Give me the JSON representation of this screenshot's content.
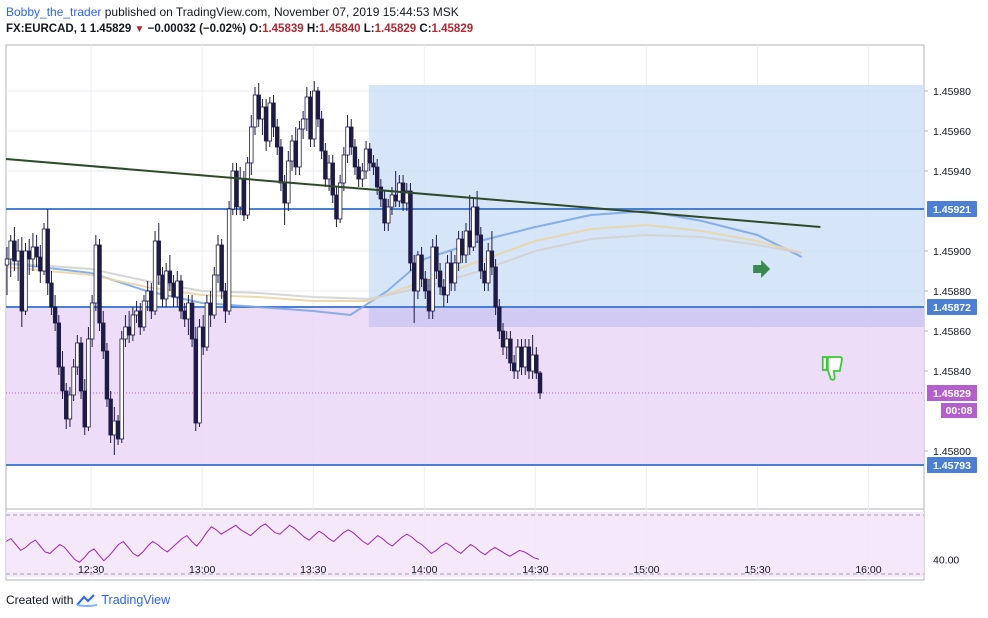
{
  "header": {
    "author": "Bobby_the_trader",
    "published_text": "published on TradingView.com, November 07, 2019 15:44:53 MSK",
    "symbol": "FX:EURCAD, 1",
    "last": "1.45829",
    "change": "−0.00032 (−0.02%)",
    "o_label": "O:",
    "o_value": "1.45839",
    "h_label": "H:",
    "h_value": "1.45840",
    "l_label": "L:",
    "l_value": "1.45829",
    "c_label": "C:",
    "c_value": "1.45829"
  },
  "footer": {
    "created_with": "Created with",
    "brand": "TradingView"
  },
  "colors": {
    "candle": "#1e1b47",
    "accent_blue": "#4a7fd4",
    "bull_zone": "#cfe0f7",
    "bear_zone": "#ead7f7",
    "purple_tag": "#b55fcf",
    "trendline": "#2f4a2a",
    "rsi": "#9c27b0",
    "signal_up": "#3a8a50",
    "signal_down": "#33cc33"
  },
  "icons": [
    "arrow-right-icon",
    "thumbs-down-icon",
    "tradingview-logo-icon"
  ],
  "chart_data": {
    "type": "candlestick",
    "instrument": "FX:EURCAD",
    "interval": "1",
    "y_ticks": [
      "1.45980",
      "1.45960",
      "1.45940",
      "1.45900",
      "1.45880",
      "1.45860",
      "1.45840",
      "1.45800"
    ],
    "x_ticks": [
      "12:30",
      "13:00",
      "13:30",
      "14:00",
      "14:30",
      "15:00",
      "15:30",
      "16:00"
    ],
    "x_range": [
      "12:07",
      "16:15"
    ],
    "ylim": [
      1.45771,
      1.46003
    ],
    "level_lines": [
      {
        "value": 1.45921,
        "label": "1.45921"
      },
      {
        "value": 1.45872,
        "label": "1.45872"
      },
      {
        "value": 1.45793,
        "label": "1.45793"
      }
    ],
    "last_price": {
      "value": 1.45829,
      "label": "1.45829",
      "countdown": "00:08"
    },
    "zones": [
      {
        "type": "long",
        "from_time": "13:45",
        "to_time": "16:15",
        "low": 1.45862,
        "high": 1.45983
      },
      {
        "type": "short",
        "from_time": "12:07",
        "to_time": "16:15",
        "low": 1.45793,
        "high": 1.45872
      }
    ],
    "trendline": {
      "from": {
        "time": "12:07",
        "price": 1.45946
      },
      "to": {
        "time": "15:47",
        "price": 1.45912
      }
    },
    "markers": [
      {
        "type": "buy-arrow",
        "time": "15:31",
        "price": 1.45891
      },
      {
        "type": "sell-thumbs-down",
        "time": "15:49",
        "price": 1.45842
      }
    ],
    "ma_lines": [
      {
        "color": "#7ea7e6",
        "points": [
          [
            "12:07",
            1.45894
          ],
          [
            "12:30",
            1.45889
          ],
          [
            "12:45",
            1.4588
          ],
          [
            "13:00",
            1.45874
          ],
          [
            "13:15",
            1.45872
          ],
          [
            "13:30",
            1.4587
          ],
          [
            "13:40",
            1.45868
          ],
          [
            "13:50",
            1.4588
          ],
          [
            "14:00",
            1.45896
          ],
          [
            "14:15",
            1.45905
          ],
          [
            "14:30",
            1.45912
          ],
          [
            "14:45",
            1.45918
          ],
          [
            "15:00",
            1.4592
          ],
          [
            "15:15",
            1.45915
          ],
          [
            "15:30",
            1.45908
          ],
          [
            "15:42",
            1.45897
          ]
        ]
      },
      {
        "color": "#e8d6a8",
        "points": [
          [
            "12:07",
            1.45892
          ],
          [
            "12:30",
            1.45888
          ],
          [
            "12:45",
            1.45882
          ],
          [
            "13:00",
            1.45878
          ],
          [
            "13:15",
            1.45877
          ],
          [
            "13:30",
            1.45875
          ],
          [
            "13:45",
            1.45875
          ],
          [
            "14:00",
            1.45885
          ],
          [
            "14:15",
            1.45895
          ],
          [
            "14:30",
            1.45905
          ],
          [
            "14:45",
            1.45911
          ],
          [
            "15:00",
            1.45913
          ],
          [
            "15:15",
            1.4591
          ],
          [
            "15:30",
            1.45905
          ],
          [
            "15:42",
            1.45899
          ]
        ]
      },
      {
        "color": "#d2d2d2",
        "points": [
          [
            "12:07",
            1.45894
          ],
          [
            "12:30",
            1.45891
          ],
          [
            "12:45",
            1.45885
          ],
          [
            "13:00",
            1.4588
          ],
          [
            "13:15",
            1.45879
          ],
          [
            "13:30",
            1.45877
          ],
          [
            "13:45",
            1.45876
          ],
          [
            "14:00",
            1.45882
          ],
          [
            "14:15",
            1.4589
          ],
          [
            "14:30",
            1.459
          ],
          [
            "14:45",
            1.45906
          ],
          [
            "15:00",
            1.45908
          ],
          [
            "15:15",
            1.45907
          ],
          [
            "15:30",
            1.45903
          ],
          [
            "15:42",
            1.45899
          ]
        ]
      }
    ],
    "candles_ohlc_start": "12:07",
    "candles": [
      [
        1.45893,
        1.45902,
        1.45878,
        1.45896
      ],
      [
        1.45896,
        1.45908,
        1.45887,
        1.45905
      ],
      [
        1.45905,
        1.45912,
        1.4589,
        1.45895
      ],
      [
        1.45895,
        1.45906,
        1.45885,
        1.459
      ],
      [
        1.459,
        1.45907,
        1.45862,
        1.4587
      ],
      [
        1.4587,
        1.45904,
        1.45868,
        1.459
      ],
      [
        1.459,
        1.45906,
        1.45888,
        1.45896
      ],
      [
        1.45896,
        1.45909,
        1.4589,
        1.45902
      ],
      [
        1.45902,
        1.45908,
        1.45892,
        1.45897
      ],
      [
        1.45897,
        1.45903,
        1.45884,
        1.4589
      ],
      [
        1.4589,
        1.45914,
        1.45888,
        1.45911
      ],
      [
        1.45911,
        1.45921,
        1.45878,
        1.45884
      ],
      [
        1.45884,
        1.4589,
        1.45868,
        1.45872
      ],
      [
        1.45872,
        1.45878,
        1.4586,
        1.45864
      ],
      [
        1.45864,
        1.45868,
        1.45838,
        1.45842
      ],
      [
        1.45842,
        1.4585,
        1.45826,
        1.4583
      ],
      [
        1.4583,
        1.45834,
        1.45811,
        1.45816
      ],
      [
        1.45816,
        1.45832,
        1.45812,
        1.45828
      ],
      [
        1.45828,
        1.45846,
        1.45825,
        1.45842
      ],
      [
        1.45842,
        1.45858,
        1.45838,
        1.45854
      ],
      [
        1.45854,
        1.45857,
        1.45826,
        1.4583
      ],
      [
        1.4583,
        1.45836,
        1.45808,
        1.45812
      ],
      [
        1.45812,
        1.45862,
        1.4581,
        1.45856
      ],
      [
        1.45856,
        1.45878,
        1.45852,
        1.45874
      ],
      [
        1.45874,
        1.45908,
        1.4587,
        1.45903
      ],
      [
        1.45903,
        1.45906,
        1.4586,
        1.45864
      ],
      [
        1.45864,
        1.4587,
        1.45846,
        1.4585
      ],
      [
        1.4585,
        1.45854,
        1.45822,
        1.45826
      ],
      [
        1.45826,
        1.4583,
        1.45804,
        1.45808
      ],
      [
        1.45808,
        1.45822,
        1.45798,
        1.45815
      ],
      [
        1.45815,
        1.45818,
        1.45803,
        1.45806
      ],
      [
        1.45806,
        1.4586,
        1.45804,
        1.45856
      ],
      [
        1.45856,
        1.45868,
        1.45852,
        1.45862
      ],
      [
        1.45862,
        1.4587,
        1.45854,
        1.45858
      ],
      [
        1.45858,
        1.45872,
        1.45855,
        1.45868
      ],
      [
        1.45868,
        1.45875,
        1.45864,
        1.4587
      ],
      [
        1.4587,
        1.45874,
        1.45858,
        1.45862
      ],
      [
        1.45862,
        1.45878,
        1.4586,
        1.45875
      ],
      [
        1.45875,
        1.45885,
        1.4587,
        1.4588
      ],
      [
        1.4588,
        1.45884,
        1.45866,
        1.4587
      ],
      [
        1.4587,
        1.4591,
        1.45868,
        1.45905
      ],
      [
        1.45905,
        1.45914,
        1.45883,
        1.45888
      ],
      [
        1.45888,
        1.45892,
        1.45872,
        1.45876
      ],
      [
        1.45876,
        1.45894,
        1.45872,
        1.4589
      ],
      [
        1.4589,
        1.45898,
        1.4588,
        1.45884
      ],
      [
        1.45884,
        1.45888,
        1.45872,
        1.45877
      ],
      [
        1.45877,
        1.4589,
        1.45872,
        1.45885
      ],
      [
        1.45885,
        1.45888,
        1.45866,
        1.4587
      ],
      [
        1.4587,
        1.45874,
        1.45862,
        1.45866
      ],
      [
        1.45866,
        1.45878,
        1.45858,
        1.45874
      ],
      [
        1.45874,
        1.45878,
        1.45852,
        1.45856
      ],
      [
        1.45856,
        1.45862,
        1.4581,
        1.45814
      ],
      [
        1.45814,
        1.45866,
        1.45812,
        1.45862
      ],
      [
        1.45862,
        1.45868,
        1.45848,
        1.45852
      ],
      [
        1.45852,
        1.45878,
        1.4585,
        1.45874
      ],
      [
        1.45874,
        1.4588,
        1.45862,
        1.45868
      ],
      [
        1.45868,
        1.45892,
        1.45866,
        1.45888
      ],
      [
        1.45888,
        1.45908,
        1.45884,
        1.45903
      ],
      [
        1.45903,
        1.45906,
        1.45876,
        1.4588
      ],
      [
        1.4588,
        1.45884,
        1.45864,
        1.4587
      ],
      [
        1.4587,
        1.45925,
        1.45868,
        1.45921
      ],
      [
        1.45921,
        1.45944,
        1.45918,
        1.4594
      ],
      [
        1.4594,
        1.45944,
        1.45918,
        1.45922
      ],
      [
        1.45922,
        1.45942,
        1.45918,
        1.45936
      ],
      [
        1.45936,
        1.4594,
        1.45915,
        1.45918
      ],
      [
        1.45918,
        1.45947,
        1.45916,
        1.45944
      ],
      [
        1.45944,
        1.45968,
        1.45938,
        1.45962
      ],
      [
        1.45962,
        1.45982,
        1.45958,
        1.45978
      ],
      [
        1.45978,
        1.45984,
        1.45962,
        1.45966
      ],
      [
        1.45966,
        1.45976,
        1.45958,
        1.45972
      ],
      [
        1.45972,
        1.45976,
        1.4595,
        1.45955
      ],
      [
        1.45955,
        1.45977,
        1.45952,
        1.45974
      ],
      [
        1.45974,
        1.45978,
        1.45957,
        1.45962
      ],
      [
        1.45962,
        1.45966,
        1.45948,
        1.45952
      ],
      [
        1.45952,
        1.45956,
        1.4593,
        1.45934
      ],
      [
        1.45934,
        1.45938,
        1.45913,
        1.45924
      ],
      [
        1.45924,
        1.4595,
        1.4592,
        1.45945
      ],
      [
        1.45945,
        1.45958,
        1.4594,
        1.45955
      ],
      [
        1.45955,
        1.45962,
        1.45938,
        1.45942
      ],
      [
        1.45942,
        1.45965,
        1.45938,
        1.45961
      ],
      [
        1.45961,
        1.4597,
        1.45956,
        1.45966
      ],
      [
        1.45966,
        1.45982,
        1.4596,
        1.45977
      ],
      [
        1.45977,
        1.4598,
        1.45952,
        1.45956
      ],
      [
        1.45956,
        1.45985,
        1.45952,
        1.4598
      ],
      [
        1.4598,
        1.45982,
        1.45962,
        1.45966
      ],
      [
        1.45966,
        1.4597,
        1.45946,
        1.4595
      ],
      [
        1.4595,
        1.45954,
        1.45932,
        1.45936
      ],
      [
        1.45936,
        1.45948,
        1.4593,
        1.45944
      ],
      [
        1.45944,
        1.45948,
        1.45924,
        1.45928
      ],
      [
        1.45928,
        1.45932,
        1.45912,
        1.45916
      ],
      [
        1.45916,
        1.45938,
        1.45914,
        1.45934
      ],
      [
        1.45934,
        1.45952,
        1.4593,
        1.45948
      ],
      [
        1.45948,
        1.45968,
        1.45944,
        1.45962
      ],
      [
        1.45962,
        1.45966,
        1.45948,
        1.45952
      ],
      [
        1.45952,
        1.45956,
        1.45938,
        1.45942
      ],
      [
        1.45942,
        1.45946,
        1.45932,
        1.45936
      ],
      [
        1.45936,
        1.45944,
        1.45932,
        1.4594
      ],
      [
        1.4594,
        1.45955,
        1.45936,
        1.45951
      ],
      [
        1.45951,
        1.45954,
        1.4594,
        1.45944
      ],
      [
        1.45944,
        1.45948,
        1.45938,
        1.45942
      ],
      [
        1.45942,
        1.45946,
        1.45928,
        1.45932
      ],
      [
        1.45932,
        1.45936,
        1.45922,
        1.45926
      ],
      [
        1.45926,
        1.4593,
        1.4591,
        1.45914
      ],
      [
        1.45914,
        1.45926,
        1.4591,
        1.45922
      ],
      [
        1.45922,
        1.45932,
        1.45918,
        1.45928
      ],
      [
        1.45928,
        1.4594,
        1.45922,
        1.45925
      ],
      [
        1.45925,
        1.45938,
        1.45922,
        1.45934
      ],
      [
        1.45934,
        1.45938,
        1.4592,
        1.45924
      ],
      [
        1.45924,
        1.45934,
        1.4592,
        1.4593
      ],
      [
        1.4593,
        1.45934,
        1.4589,
        1.45894
      ],
      [
        1.45894,
        1.45898,
        1.45864,
        1.4588
      ],
      [
        1.4588,
        1.459,
        1.45876,
        1.45898
      ],
      [
        1.45898,
        1.45902,
        1.45882,
        1.45886
      ],
      [
        1.45886,
        1.4589,
        1.45876,
        1.4588
      ],
      [
        1.4588,
        1.45886,
        1.45866,
        1.4587
      ],
      [
        1.4587,
        1.45906,
        1.45866,
        1.45902
      ],
      [
        1.45902,
        1.45908,
        1.45886,
        1.4589
      ],
      [
        1.4589,
        1.45894,
        1.45878,
        1.45882
      ],
      [
        1.45882,
        1.45886,
        1.45872,
        1.45878
      ],
      [
        1.45878,
        1.45898,
        1.45874,
        1.45894
      ],
      [
        1.45894,
        1.459,
        1.4588,
        1.45884
      ],
      [
        1.45884,
        1.45898,
        1.4588,
        1.45894
      ],
      [
        1.45894,
        1.4591,
        1.4589,
        1.45906
      ],
      [
        1.45906,
        1.4591,
        1.45894,
        1.45898
      ],
      [
        1.45898,
        1.45914,
        1.45894,
        1.4591
      ],
      [
        1.4591,
        1.45928,
        1.45898,
        1.45902
      ],
      [
        1.45902,
        1.45926,
        1.459,
        1.45922
      ],
      [
        1.45922,
        1.4593,
        1.45904,
        1.45908
      ],
      [
        1.45908,
        1.45912,
        1.45886,
        1.4589
      ],
      [
        1.4589,
        1.45894,
        1.4588,
        1.45884
      ],
      [
        1.45884,
        1.45904,
        1.4588,
        1.459
      ],
      [
        1.459,
        1.4591,
        1.45888,
        1.45892
      ],
      [
        1.45892,
        1.45896,
        1.45868,
        1.45872
      ],
      [
        1.45872,
        1.45876,
        1.45856,
        1.4586
      ],
      [
        1.4586,
        1.45864,
        1.45848,
        1.45852
      ],
      [
        1.45852,
        1.4586,
        1.45846,
        1.45856
      ],
      [
        1.45856,
        1.4586,
        1.4584,
        1.45844
      ],
      [
        1.45844,
        1.45848,
        1.45836,
        1.4584
      ],
      [
        1.4584,
        1.45856,
        1.45836,
        1.45852
      ],
      [
        1.45852,
        1.45856,
        1.45838,
        1.45842
      ],
      [
        1.45842,
        1.45856,
        1.45838,
        1.45852
      ],
      [
        1.45852,
        1.45856,
        1.45836,
        1.4584
      ],
      [
        1.4584,
        1.45858,
        1.45836,
        1.45848
      ],
      [
        1.45848,
        1.45852,
        1.45836,
        1.45839
      ],
      [
        1.45839,
        1.4584,
        1.45826,
        1.45829
      ]
    ],
    "rsi": {
      "level_line": "40.00",
      "values": [
        52,
        54,
        50,
        46,
        48,
        51,
        53,
        49,
        45,
        44,
        47,
        50,
        48,
        44,
        40,
        38,
        41,
        45,
        47,
        43,
        39,
        42,
        46,
        50,
        52,
        48,
        44,
        42,
        45,
        49,
        52,
        50,
        47,
        45,
        48,
        51,
        54,
        56,
        52,
        49,
        53,
        58,
        62,
        60,
        57,
        59,
        61,
        63,
        60,
        58,
        56,
        59,
        62,
        64,
        61,
        58,
        57,
        60,
        63,
        61,
        58,
        55,
        53,
        56,
        59,
        57,
        54,
        52,
        55,
        58,
        60,
        58,
        55,
        52,
        50,
        53,
        56,
        54,
        51,
        49,
        52,
        55,
        57,
        55,
        52,
        50,
        47,
        44,
        46,
        49,
        51,
        49,
        46,
        44,
        47,
        50,
        48,
        45,
        43,
        46,
        48,
        46,
        44,
        42,
        44,
        46,
        45,
        43,
        41,
        40
      ]
    }
  }
}
